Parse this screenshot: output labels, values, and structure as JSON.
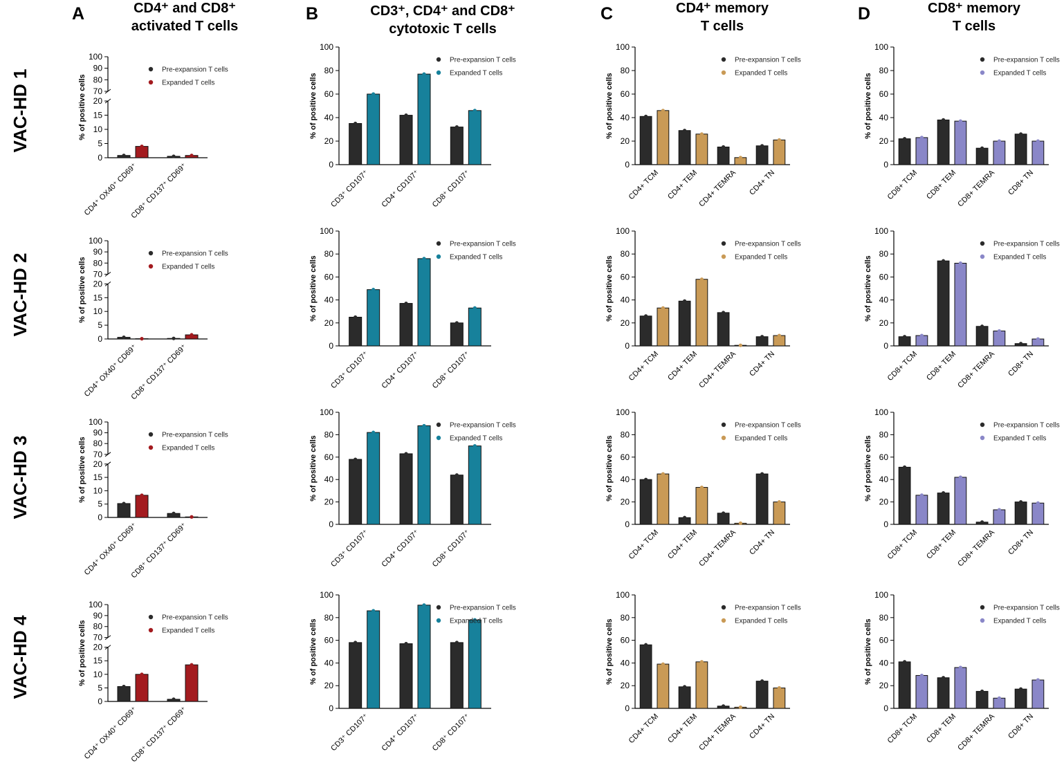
{
  "figure": {
    "row_labels": [
      "VAC-HD 1",
      "VAC-HD 2",
      "VAC-HD 3",
      "VAC-HD 4"
    ],
    "panels": [
      {
        "letter": "A",
        "title_lines": [
          "CD4⁺  and CD8⁺",
          "activated T cells"
        ]
      },
      {
        "letter": "B",
        "title_lines": [
          "CD3⁺, CD4⁺  and CD8⁺",
          "cytotoxic T cells"
        ]
      },
      {
        "letter": "C",
        "title_lines": [
          "CD4⁺  memory",
          "T cells"
        ]
      },
      {
        "letter": "D",
        "title_lines": [
          "CD8⁺ memory",
          "T cells"
        ]
      }
    ]
  },
  "colors": {
    "pre": "#2b2b2b",
    "expanded_A": "#a31b1f",
    "expanded_B": "#17819b",
    "expanded_C": "#c99a56",
    "expanded_D": "#8a87c8"
  },
  "chart_data": [
    {
      "panel": "A",
      "row": "VAC-HD 1",
      "type": "bar",
      "broken_axis": true,
      "ylabel": "% of positive cells",
      "categories": [
        "CD4⁺ OX40⁺ CD69⁺",
        "CD8⁺ CD137⁺ CD69⁺"
      ],
      "series": [
        {
          "name": "Pre-expansion T cells",
          "values": [
            0.8,
            0.5
          ]
        },
        {
          "name": "Expanded T cells",
          "values": [
            4.0,
            0.8
          ]
        }
      ],
      "ylim_lower": [
        0,
        20
      ],
      "ylim_upper": [
        70,
        100
      ],
      "yticks_lower": [
        "0",
        "5",
        "10",
        "15",
        "20"
      ],
      "yticks_upper": [
        "70",
        "80",
        "90",
        "100"
      ],
      "legend": "top-right"
    },
    {
      "panel": "B",
      "row": "VAC-HD 1",
      "type": "bar",
      "ylabel": "% of positive cells",
      "categories": [
        "CD3⁺ CD107⁺",
        "CD4⁺ CD107⁺",
        "CD8⁺ CD107⁺"
      ],
      "series": [
        {
          "name": "Pre-expansion T cells",
          "values": [
            35,
            42,
            32
          ]
        },
        {
          "name": "Expanded T cells",
          "values": [
            60,
            77,
            46
          ]
        }
      ],
      "ylim": [
        0,
        100
      ],
      "yticks": [
        "0",
        "20",
        "40",
        "60",
        "80",
        "100"
      ],
      "legend": "top-right"
    },
    {
      "panel": "C",
      "row": "VAC-HD 1",
      "type": "bar",
      "ylabel": "% of positive cells",
      "categories": [
        "CD4+ TCM",
        "CD4+ TEM",
        "CD4+ TEMRA",
        "CD4+ TN"
      ],
      "series": [
        {
          "name": "Pre-expansion T cells",
          "values": [
            41,
            29,
            15,
            16
          ]
        },
        {
          "name": "Expanded T cells",
          "values": [
            46,
            26,
            6,
            21
          ]
        }
      ],
      "ylim": [
        0,
        100
      ],
      "yticks": [
        "0",
        "20",
        "40",
        "60",
        "80",
        "100"
      ],
      "legend": "top-right"
    },
    {
      "panel": "D",
      "row": "VAC-HD 1",
      "type": "bar",
      "ylabel": "% of positive cells",
      "categories": [
        "CD8+ TCM",
        "CD8+ TEM",
        "CD8+ TEMRA",
        "CD8+ TN"
      ],
      "series": [
        {
          "name": "Pre-expansion T cells",
          "values": [
            22,
            38,
            14,
            26
          ]
        },
        {
          "name": "Expanded T cells",
          "values": [
            23,
            37,
            20,
            20
          ]
        }
      ],
      "ylim": [
        0,
        100
      ],
      "yticks": [
        "0",
        "20",
        "40",
        "60",
        "80",
        "100"
      ],
      "legend": "top-right"
    },
    {
      "panel": "A",
      "row": "VAC-HD 2",
      "type": "bar",
      "broken_axis": true,
      "ylabel": "% of positive cells",
      "categories": [
        "CD4⁺ OX40⁺ CD69⁺",
        "CD8⁺ CD137⁺ CD69⁺"
      ],
      "series": [
        {
          "name": "Pre-expansion T cells",
          "values": [
            0.6,
            0.2
          ]
        },
        {
          "name": "Expanded T cells",
          "values": [
            0.1,
            1.5
          ]
        }
      ],
      "ylim_lower": [
        0,
        20
      ],
      "ylim_upper": [
        70,
        100
      ],
      "yticks_lower": [
        "0",
        "5",
        "10",
        "15",
        "20"
      ],
      "yticks_upper": [
        "70",
        "80",
        "90",
        "100"
      ],
      "legend": "top-right"
    },
    {
      "panel": "B",
      "row": "VAC-HD 2",
      "type": "bar",
      "ylabel": "% of positive cells",
      "categories": [
        "CD3⁺ CD107⁺",
        "CD4⁺ CD107⁺",
        "CD8⁺ CD107⁺"
      ],
      "series": [
        {
          "name": "Pre-expansion T cells",
          "values": [
            25,
            37,
            20
          ]
        },
        {
          "name": "Expanded T cells",
          "values": [
            49,
            76,
            33
          ]
        }
      ],
      "ylim": [
        0,
        100
      ],
      "yticks": [
        "0",
        "20",
        "40",
        "60",
        "80",
        "100"
      ],
      "legend": "top-right"
    },
    {
      "panel": "C",
      "row": "VAC-HD 2",
      "type": "bar",
      "ylabel": "% of positive cells",
      "categories": [
        "CD4+ TCM",
        "CD4+ TEM",
        "CD4+ TEMRA",
        "CD4+ TN"
      ],
      "series": [
        {
          "name": "Pre-expansion T cells",
          "values": [
            26,
            39,
            29,
            8
          ]
        },
        {
          "name": "Expanded T cells",
          "values": [
            33,
            58,
            0.5,
            9
          ]
        }
      ],
      "ylim": [
        0,
        100
      ],
      "yticks": [
        "0",
        "20",
        "40",
        "60",
        "80",
        "100"
      ],
      "legend": "top-right"
    },
    {
      "panel": "D",
      "row": "VAC-HD 2",
      "type": "bar",
      "ylabel": "% of positive cells",
      "categories": [
        "CD8+ TCM",
        "CD8+ TEM",
        "CD8+ TEMRA",
        "CD8+ TN"
      ],
      "series": [
        {
          "name": "Pre-expansion T cells",
          "values": [
            8,
            74,
            17,
            2
          ]
        },
        {
          "name": "Expanded T cells",
          "values": [
            9,
            72,
            13,
            6
          ]
        }
      ],
      "ylim": [
        0,
        100
      ],
      "yticks": [
        "0",
        "20",
        "40",
        "60",
        "80",
        "100"
      ],
      "legend": "top-right"
    },
    {
      "panel": "A",
      "row": "VAC-HD 3",
      "type": "bar",
      "broken_axis": true,
      "ylabel": "% of positive cells",
      "categories": [
        "CD4⁺ OX40⁺ CD69⁺",
        "CD8⁺ CD137⁺ CD69⁺"
      ],
      "series": [
        {
          "name": "Pre-expansion T cells",
          "values": [
            5.2,
            1.5
          ]
        },
        {
          "name": "Expanded T cells",
          "values": [
            8.3,
            0.2
          ]
        }
      ],
      "ylim_lower": [
        0,
        20
      ],
      "ylim_upper": [
        70,
        100
      ],
      "yticks_lower": [
        "0",
        "5",
        "10",
        "15",
        "20"
      ],
      "yticks_upper": [
        "70",
        "80",
        "90",
        "100"
      ],
      "legend": "top-right"
    },
    {
      "panel": "B",
      "row": "VAC-HD 3",
      "type": "bar",
      "ylabel": "% of positive cells",
      "categories": [
        "CD3⁺ CD107⁺",
        "CD4⁺ CD107⁺",
        "CD8⁺ CD107⁺"
      ],
      "series": [
        {
          "name": "Pre-expansion T cells",
          "values": [
            58,
            63,
            44
          ]
        },
        {
          "name": "Expanded T cells",
          "values": [
            82,
            88,
            70
          ]
        }
      ],
      "ylim": [
        0,
        100
      ],
      "yticks": [
        "0",
        "20",
        "40",
        "60",
        "80",
        "100"
      ],
      "legend": "top-right"
    },
    {
      "panel": "C",
      "row": "VAC-HD 3",
      "type": "bar",
      "ylabel": "% of positive cells",
      "categories": [
        "CD4+ TCM",
        "CD4+ TEM",
        "CD4+ TEMRA",
        "CD4+ TN"
      ],
      "series": [
        {
          "name": "Pre-expansion T cells",
          "values": [
            40,
            6,
            10,
            45
          ]
        },
        {
          "name": "Expanded T cells",
          "values": [
            45,
            33,
            1,
            20
          ]
        }
      ],
      "ylim": [
        0,
        100
      ],
      "yticks": [
        "0",
        "20",
        "40",
        "60",
        "80",
        "100"
      ],
      "legend": "top-right"
    },
    {
      "panel": "D",
      "row": "VAC-HD 3",
      "type": "bar",
      "ylabel": "% of positive cells",
      "categories": [
        "CD8+ TCM",
        "CD8+ TEM",
        "CD8+ TEMRA",
        "CD8+ TN"
      ],
      "series": [
        {
          "name": "Pre-expansion T cells",
          "values": [
            51,
            28,
            2,
            20
          ]
        },
        {
          "name": "Expanded T cells",
          "values": [
            26,
            42,
            13,
            19
          ]
        }
      ],
      "ylim": [
        0,
        100
      ],
      "yticks": [
        "0",
        "20",
        "40",
        "60",
        "80",
        "100"
      ],
      "legend": "top-right"
    },
    {
      "panel": "A",
      "row": "VAC-HD 4",
      "type": "bar",
      "broken_axis": true,
      "ylabel": "% of positive cells",
      "categories": [
        "CD4⁺ OX40⁺ CD69⁺",
        "CD8⁺ CD137⁺ CD69⁺"
      ],
      "series": [
        {
          "name": "Pre-expansion T cells",
          "values": [
            5.5,
            0.8
          ]
        },
        {
          "name": "Expanded T cells",
          "values": [
            10.0,
            13.5
          ]
        }
      ],
      "ylim_lower": [
        0,
        20
      ],
      "ylim_upper": [
        70,
        100
      ],
      "yticks_lower": [
        "0",
        "5",
        "10",
        "15",
        "20"
      ],
      "yticks_upper": [
        "70",
        "80",
        "90",
        "100"
      ],
      "legend": "top-right"
    },
    {
      "panel": "B",
      "row": "VAC-HD 4",
      "type": "bar",
      "ylabel": "% of positive cells",
      "categories": [
        "CD3⁺ CD107⁺",
        "CD4⁺ CD107⁺",
        "CD8⁺ CD107⁺"
      ],
      "series": [
        {
          "name": "Pre-expansion T cells",
          "values": [
            58,
            57,
            58
          ]
        },
        {
          "name": "Expanded T cells",
          "values": [
            86,
            91,
            78
          ]
        }
      ],
      "ylim": [
        0,
        100
      ],
      "yticks": [
        "0",
        "20",
        "40",
        "60",
        "80",
        "100"
      ],
      "legend": "top-right"
    },
    {
      "panel": "C",
      "row": "VAC-HD 4",
      "type": "bar",
      "ylabel": "% of positive cells",
      "categories": [
        "CD4+ TCM",
        "CD4+ TEM",
        "CD4+ TEMRA",
        "CD4+ TN"
      ],
      "series": [
        {
          "name": "Pre-expansion T cells",
          "values": [
            56,
            19,
            2,
            24
          ]
        },
        {
          "name": "Expanded T cells",
          "values": [
            39,
            41,
            1,
            18
          ]
        }
      ],
      "ylim": [
        0,
        100
      ],
      "yticks": [
        "0",
        "20",
        "40",
        "60",
        "80",
        "100"
      ],
      "legend": "top-right"
    },
    {
      "panel": "D",
      "row": "VAC-HD 4",
      "type": "bar",
      "ylabel": "% of positive cells",
      "categories": [
        "CD8+ TCM",
        "CD8+ TEM",
        "CD8+ TEMRA",
        "CD8+ TN"
      ],
      "series": [
        {
          "name": "Pre-expansion T cells",
          "values": [
            41,
            27,
            15,
            17
          ]
        },
        {
          "name": "Expanded T cells",
          "values": [
            29,
            36,
            9,
            25
          ]
        }
      ],
      "ylim": [
        0,
        100
      ],
      "yticks": [
        "0",
        "20",
        "40",
        "60",
        "80",
        "100"
      ],
      "legend": "top-right"
    }
  ]
}
